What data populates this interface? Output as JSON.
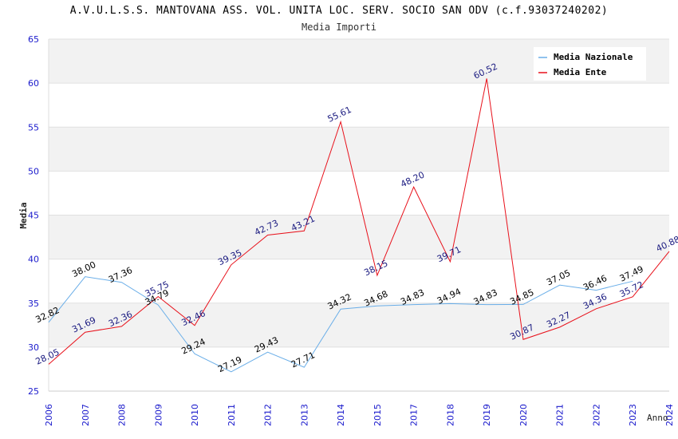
{
  "title": "A.V.U.L.S.S. MANTOVANA ASS. VOL. UNITA LOC. SERV. SOCIO SAN ODV (c.f.93037240202)",
  "subtitle": "Media Importi",
  "chart_data": {
    "type": "line",
    "title": "A.V.U.L.S.S. MANTOVANA ASS. VOL. UNITA LOC. SERV. SOCIO SAN ODV (c.f.93037240202)",
    "subtitle": "Media Importi",
    "xlabel": "Anno",
    "ylabel": "Media",
    "ylim": [
      25,
      65
    ],
    "yticks": [
      25,
      30,
      35,
      40,
      45,
      50,
      55,
      60,
      65
    ],
    "grid": true,
    "legend_position": "top-right",
    "x": [
      "2006",
      "2007",
      "2008",
      "2009",
      "2010",
      "2011",
      "2012",
      "2013",
      "2014",
      "2015",
      "2017",
      "2018",
      "2019",
      "2020",
      "2021",
      "2022",
      "2023",
      "2024"
    ],
    "series": [
      {
        "name": "Media Nazionale",
        "color": "#6aaee8",
        "label_color": "#000000",
        "values": [
          32.82,
          38.0,
          37.36,
          34.79,
          29.24,
          27.19,
          29.43,
          27.71,
          34.32,
          34.68,
          34.83,
          34.94,
          34.83,
          34.85,
          37.05,
          36.46,
          37.49,
          null
        ],
        "labels": [
          "32.82",
          "38.00",
          "37.36",
          "34.79",
          "29.24",
          "27.19",
          "29.43",
          "27.71",
          "34.32",
          "34.68",
          "34.83",
          "34.94",
          "34.83",
          "34.85",
          "37.05",
          "36.46",
          "37.49",
          ""
        ]
      },
      {
        "name": "Media Ente",
        "color": "#e8101a",
        "label_color": "#1a1a80",
        "values": [
          28.05,
          31.69,
          32.36,
          35.75,
          32.46,
          39.35,
          42.73,
          43.21,
          55.61,
          38.15,
          48.2,
          39.71,
          60.52,
          30.87,
          32.27,
          34.36,
          35.72,
          40.88
        ],
        "labels": [
          "28.05",
          "31.69",
          "32.36",
          "35.75",
          "32.46",
          "39.35",
          "42.73",
          "43.21",
          "55.61",
          "38.15",
          "48.20",
          "39.71",
          "60.52",
          "30.87",
          "32.27",
          "34.36",
          "35.72",
          "40.88"
        ]
      }
    ]
  }
}
